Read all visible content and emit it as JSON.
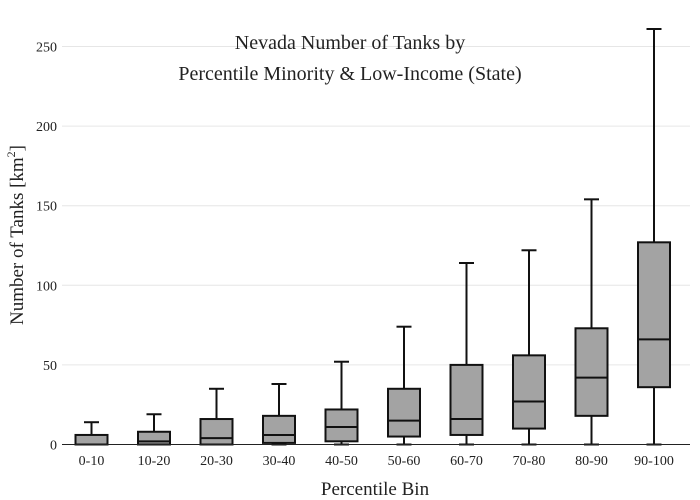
{
  "chart_data": {
    "type": "box",
    "title_line1": "Nevada Number of Tanks by",
    "title_line2": "Percentile Minority & Low-Income (State)",
    "xlabel": "Percentile Bin",
    "ylabel_main": "Number of Tanks  [km",
    "ylabel_sup": "2",
    "ylabel_end": "]",
    "ylim": [
      0,
      262
    ],
    "yticks": [
      0,
      50,
      100,
      150,
      200,
      250
    ],
    "grid": true,
    "box_color": "#a3a3a3",
    "line_color": "#111111",
    "categories": [
      "0-10",
      "10-20",
      "20-30",
      "30-40",
      "40-50",
      "50-60",
      "60-70",
      "70-80",
      "80-90",
      "90-100"
    ],
    "boxes": [
      {
        "min": 0,
        "q1": 0,
        "median": 0,
        "q3": 6,
        "max": 14
      },
      {
        "min": 0,
        "q1": 0,
        "median": 2,
        "q3": 8,
        "max": 19
      },
      {
        "min": 0,
        "q1": 0,
        "median": 4,
        "q3": 16,
        "max": 35
      },
      {
        "min": 0,
        "q1": 1,
        "median": 6,
        "q3": 18,
        "max": 38
      },
      {
        "min": 0,
        "q1": 2,
        "median": 11,
        "q3": 22,
        "max": 52
      },
      {
        "min": 0,
        "q1": 5,
        "median": 15,
        "q3": 35,
        "max": 74
      },
      {
        "min": 0,
        "q1": 6,
        "median": 16,
        "q3": 50,
        "max": 114
      },
      {
        "min": 0,
        "q1": 10,
        "median": 27,
        "q3": 56,
        "max": 122
      },
      {
        "min": 0,
        "q1": 18,
        "median": 42,
        "q3": 73,
        "max": 154
      },
      {
        "min": 0,
        "q1": 36,
        "median": 66,
        "q3": 127,
        "max": 261
      }
    ]
  }
}
